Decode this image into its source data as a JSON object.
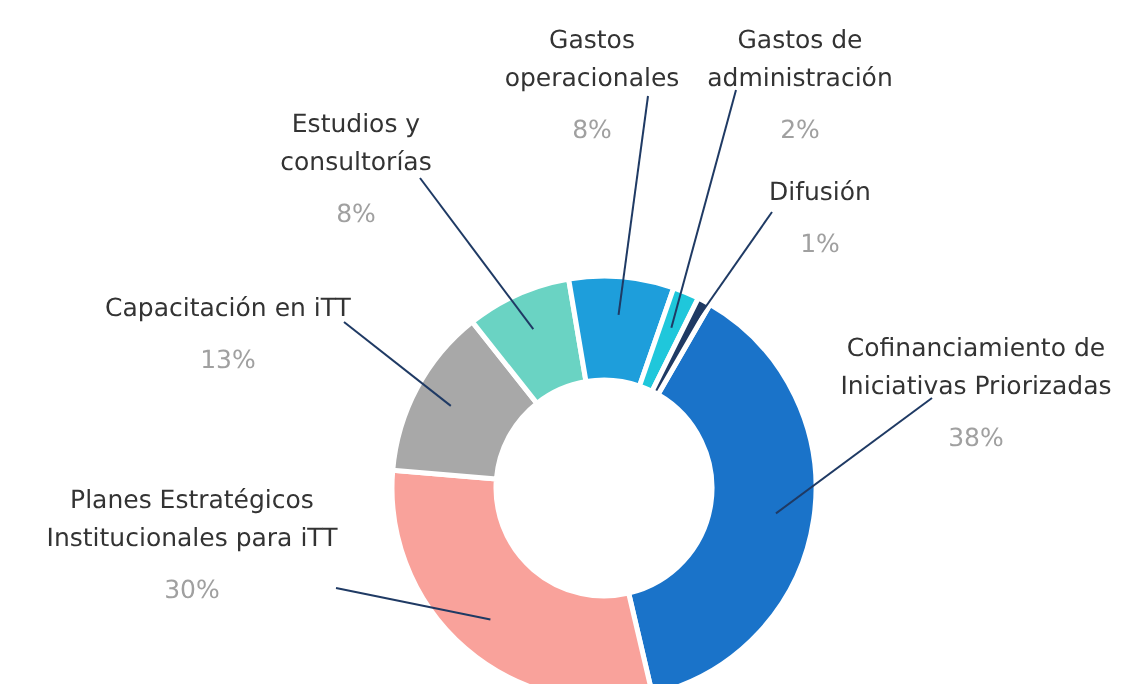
{
  "chart_data": {
    "type": "donut",
    "categories": [
      "Cofinanciamiento de Iniciativas Priorizadas",
      "Planes Estratégicos Institucionales para iTT",
      "Capacitación en iTT",
      "Estudios y consultorías",
      "Gastos operacionales",
      "Gastos de administración",
      "Difusión"
    ],
    "values": [
      38,
      30,
      13,
      8,
      8,
      2,
      1
    ],
    "value_labels": [
      "38%",
      "30%",
      "13%",
      "8%",
      "8%",
      "2%",
      "1%"
    ],
    "colors": [
      "#1a73c9",
      "#f9a29b",
      "#a8a8a8",
      "#6ad3c3",
      "#1e9edb",
      "#1fc7db",
      "#1f3a64"
    ]
  }
}
